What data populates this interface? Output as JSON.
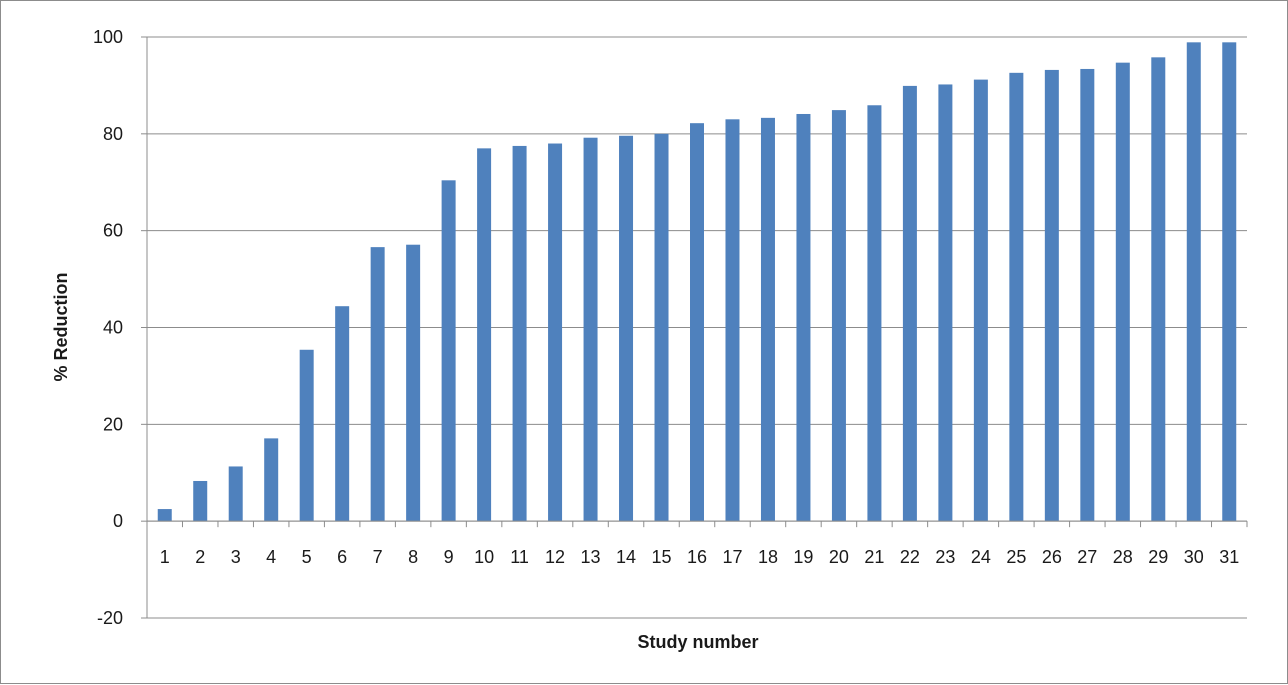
{
  "chart_data": {
    "type": "bar",
    "title": "",
    "xlabel": "Study number",
    "ylabel": "% Reduction",
    "ylim": [
      -20,
      100
    ],
    "yticks": [
      -20,
      0,
      20,
      40,
      60,
      80,
      100
    ],
    "grid": true,
    "legend": "none",
    "bar_color": "#4f81bd",
    "categories": [
      "1",
      "2",
      "3",
      "4",
      "5",
      "6",
      "7",
      "8",
      "9",
      "10",
      "11",
      "12",
      "13",
      "14",
      "15",
      "16",
      "17",
      "18",
      "19",
      "20",
      "21",
      "22",
      "23",
      "24",
      "25",
      "26",
      "27",
      "28",
      "29",
      "30",
      "31"
    ],
    "series": [
      {
        "values": [
          2.5,
          8.3,
          11.3,
          17.1,
          35.4,
          44.4,
          56.6,
          57.1,
          70.4,
          77.0,
          77.5,
          78.0,
          79.2,
          79.6,
          80.0,
          82.2,
          83.0,
          83.3,
          84.1,
          84.9,
          85.9,
          89.9,
          90.2,
          91.2,
          92.6,
          93.2,
          93.4,
          94.7,
          95.8,
          98.9,
          98.9
        ]
      }
    ]
  }
}
